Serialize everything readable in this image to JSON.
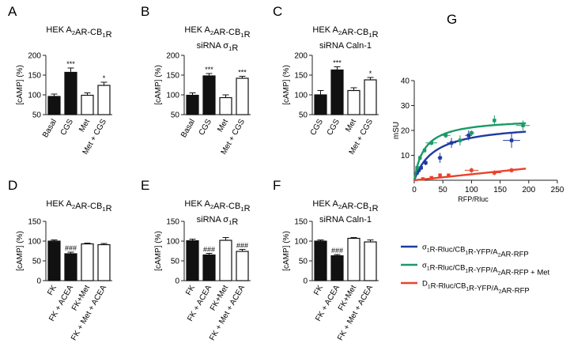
{
  "figure": {
    "panel_letters": [
      "A",
      "B",
      "C",
      "D",
      "E",
      "F",
      "G"
    ]
  },
  "chart_data": [
    {
      "panel": "A",
      "type": "bar",
      "title": "HEK A2AR-CB1R",
      "subtitle": "",
      "ylabel": "[cAMP] (%)",
      "ylim": [
        50,
        200
      ],
      "yticks": [
        50,
        100,
        150,
        200
      ],
      "categories": [
        "Basal",
        "CGS",
        "Met",
        "Met + CGS"
      ],
      "values": [
        96,
        157,
        99,
        124
      ],
      "errors": [
        6,
        11,
        6,
        8
      ],
      "fills": [
        "#111111",
        "#111111",
        "#ffffff",
        "#ffffff"
      ],
      "sig": [
        "",
        "***",
        "",
        "*"
      ]
    },
    {
      "panel": "B",
      "type": "bar",
      "title": "HEK A2AR-CB1R",
      "subtitle": "siRNA σ1R",
      "ylabel": "[cAMP] (%)",
      "ylim": [
        50,
        200
      ],
      "yticks": [
        50,
        100,
        150,
        200
      ],
      "categories": [
        "Basal",
        "CGS",
        "Met",
        "Met + CGS"
      ],
      "values": [
        99,
        148,
        93,
        142
      ],
      "errors": [
        6,
        6,
        7,
        5
      ],
      "fills": [
        "#111111",
        "#111111",
        "#ffffff",
        "#ffffff"
      ],
      "sig": [
        "",
        "***",
        "",
        "***"
      ]
    },
    {
      "panel": "C",
      "type": "bar",
      "title": "HEK A2AR-CB1R",
      "subtitle": "siRNA Caln-1",
      "ylabel": "[cAMP] (%)",
      "ylim": [
        50,
        200
      ],
      "yticks": [
        50,
        100,
        150,
        200
      ],
      "categories": [
        "CGS",
        "CGS",
        "Met",
        "Met + CGS"
      ],
      "values": [
        100,
        163,
        111,
        138
      ],
      "errors": [
        11,
        8,
        7,
        6
      ],
      "fills": [
        "#111111",
        "#111111",
        "#ffffff",
        "#ffffff"
      ],
      "sig": [
        "",
        "***",
        "",
        "*"
      ]
    },
    {
      "panel": "D",
      "type": "bar",
      "title": "HEK A2AR-CB1R",
      "subtitle": "",
      "ylabel": "[cAMP] (%)",
      "ylim": [
        0,
        150
      ],
      "yticks": [
        0,
        50,
        100,
        150
      ],
      "categories": [
        "FK",
        "FK + ACEA",
        "FK+Met",
        "FK + Met + ACEA"
      ],
      "values": [
        100,
        68,
        93,
        91
      ],
      "errors": [
        3,
        4,
        2,
        3
      ],
      "fills": [
        "#111111",
        "#111111",
        "#ffffff",
        "#ffffff"
      ],
      "sig": [
        "",
        "###",
        "",
        ""
      ]
    },
    {
      "panel": "E",
      "type": "bar",
      "title": "HEK A2AR-CB1R",
      "subtitle": "siRNA σ1R",
      "ylabel": "[cAMP] (%)",
      "ylim": [
        0,
        150
      ],
      "yticks": [
        0,
        50,
        100,
        150
      ],
      "categories": [
        "FK",
        "FK + ACEA",
        "FK+Met",
        "FK + Met + ACEA"
      ],
      "values": [
        101,
        65,
        102,
        74
      ],
      "errors": [
        4,
        4,
        7,
        5
      ],
      "fills": [
        "#111111",
        "#111111",
        "#ffffff",
        "#ffffff"
      ],
      "sig": [
        "",
        "###",
        "",
        "###"
      ]
    },
    {
      "panel": "F",
      "type": "bar",
      "title": "HEK A2AR-CB1R",
      "subtitle": "siRNA Caln-1",
      "ylabel": "[cAMP] (%)",
      "ylim": [
        0,
        150
      ],
      "yticks": [
        0,
        50,
        100,
        150
      ],
      "categories": [
        "FK",
        "FK + ACEA",
        "FK+Met",
        "FK + Met + ACEA"
      ],
      "values": [
        100,
        63,
        107,
        98
      ],
      "errors": [
        3,
        3,
        2,
        5
      ],
      "fills": [
        "#111111",
        "#111111",
        "#ffffff",
        "#ffffff"
      ],
      "sig": [
        "",
        "###",
        "",
        ""
      ]
    },
    {
      "panel": "G",
      "type": "scatter",
      "xlabel": "RFP/Rluc",
      "ylabel": "mSU",
      "xlim": [
        0,
        250
      ],
      "ylim": [
        0,
        40
      ],
      "xticks": [
        0,
        50,
        100,
        150,
        200,
        250
      ],
      "yticks": [
        10,
        20,
        30,
        40
      ],
      "series": [
        {
          "name": "σ1R-Rluc/CB1R-YFP/A2AR-RFP",
          "color": "#1f3aa0",
          "points": [
            [
              5,
              3
            ],
            [
              8,
              4
            ],
            [
              12,
              5
            ],
            [
              20,
              7
            ],
            [
              45,
              9
            ],
            [
              65,
              15
            ],
            [
              95,
              18
            ],
            [
              170,
              16
            ]
          ],
          "xerr": [
            3,
            2,
            3,
            3,
            4,
            8,
            6,
            15
          ],
          "yerr": [
            1,
            1,
            1,
            1,
            2,
            2,
            2,
            3
          ],
          "fit": {
            "bmax": 23,
            "b50": 35
          }
        },
        {
          "name": "σ1R-Rluc/CB1R-YFP/A2AR-RFP + Met",
          "color": "#1a9a68",
          "points": [
            [
              5,
              5
            ],
            [
              10,
              9
            ],
            [
              18,
              12
            ],
            [
              30,
              15
            ],
            [
              55,
              18
            ],
            [
              80,
              16
            ],
            [
              100,
              19
            ],
            [
              140,
              24
            ],
            [
              190,
              22
            ]
          ],
          "xerr": [
            2,
            3,
            3,
            10,
            8,
            4,
            5,
            3,
            12
          ],
          "yerr": [
            1,
            1,
            1,
            1,
            1,
            2,
            1,
            2,
            2
          ],
          "fit": {
            "bmax": 25,
            "b50": 18
          }
        },
        {
          "name": "D1R-Rluc/CB1R-YFP/A2AR-RFP",
          "color": "#e8432a",
          "points": [
            [
              15,
              0.5
            ],
            [
              30,
              1
            ],
            [
              45,
              2
            ],
            [
              60,
              2
            ],
            [
              100,
              4
            ],
            [
              140,
              3
            ],
            [
              170,
              4
            ]
          ],
          "xerr": [
            3,
            3,
            3,
            3,
            12,
            12,
            8
          ],
          "yerr": [
            0.5,
            0.5,
            0.8,
            0.5,
            1,
            1,
            1
          ],
          "fit": {
            "slope": 0.024
          }
        }
      ]
    }
  ]
}
